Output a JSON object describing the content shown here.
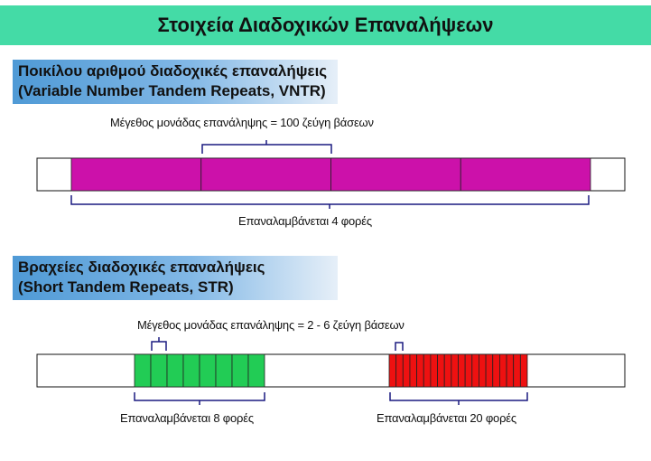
{
  "title": "Στοιχεία Διαδοχικών Επαναλήψεων",
  "vntr": {
    "heading_line1": "Ποικίλου αριθμού διαδοχικές επαναλήψεις",
    "heading_line2": "(Variable Number Tandem Repeats, VNTR)",
    "unit_label": "Μέγεθος μονάδας επανάληψης = 100 ζεύγη βάσεων",
    "repeat_label": "Επαναλαμβάνεται 4 φορές",
    "repeat_count": 4,
    "color": "#cc11aa"
  },
  "str": {
    "heading_line1": "Βραχείες διαδοχικές επαναλήψεις",
    "heading_line2": "(Short Tandem Repeats, STR)",
    "unit_label": "Μέγεθος μονάδας επανάληψης = 2 - 6 ζεύγη βάσεων",
    "repeat_label_a": "Επαναλαμβάνεται 8 φορές",
    "repeat_label_b": "Επαναλαμβάνεται 20 φορές",
    "repeat_count_a": 8,
    "repeat_count_b": 20,
    "color_a": "#22cc55",
    "color_b": "#ee1111"
  }
}
